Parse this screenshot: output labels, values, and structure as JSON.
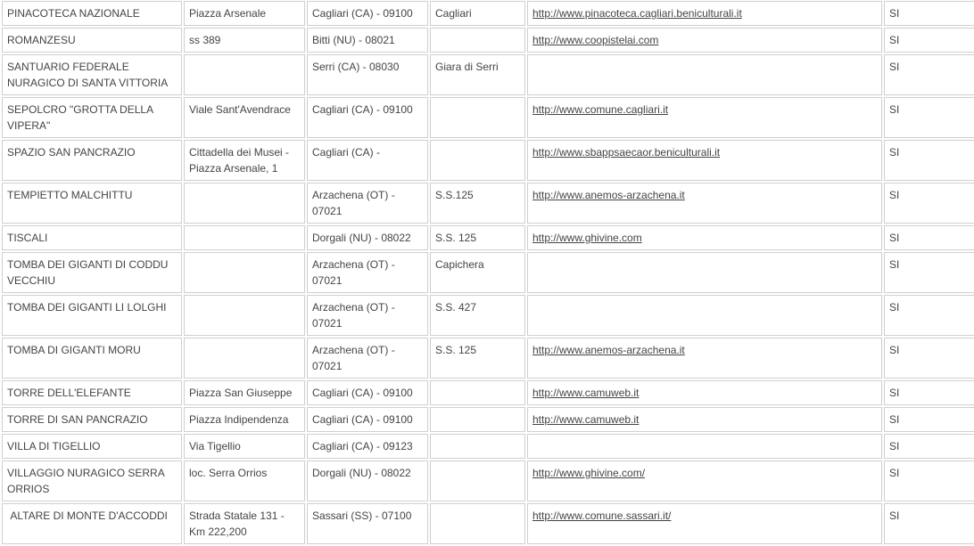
{
  "table": {
    "rows": [
      {
        "name": "PINACOTECA NAZIONALE",
        "address": "Piazza Arsenale",
        "city": "Cagliari (CA) - 09100",
        "locality": "Cagliari",
        "website": "http://www.pinacoteca.cagliari.beniculturali.it",
        "flag": "SI"
      },
      {
        "name": "ROMANZESU",
        "address": "ss 389",
        "city": "Bitti (NU) - 08021",
        "locality": "",
        "website": "http://www.coopistelai.com",
        "flag": "SI"
      },
      {
        "name": "SANTUARIO FEDERALE NURAGICO DI SANTA VITTORIA",
        "address": "",
        "city": "Serri (CA) - 08030",
        "locality": "Giara di Serri",
        "website": "",
        "flag": "SI"
      },
      {
        "name": "SEPOLCRO \"GROTTA DELLA VIPERA\"",
        "address": "Viale Sant'Avendrace",
        "city": "Cagliari (CA) - 09100",
        "locality": "",
        "website": "http://www.comune.cagliari.it",
        "flag": "SI"
      },
      {
        "name": "SPAZIO SAN PANCRAZIO",
        "address": "Cittadella dei Musei - Piazza Arsenale, 1",
        "city": "Cagliari (CA) -",
        "locality": "",
        "website": "http://www.sbappsaecaor.beniculturali.it",
        "flag": "SI"
      },
      {
        "name": "TEMPIETTO MALCHITTU",
        "address": "",
        "city": "Arzachena (OT) - 07021",
        "locality": "S.S.125",
        "website": "http://www.anemos-arzachena.it",
        "flag": "SI"
      },
      {
        "name": "TISCALI",
        "address": "",
        "city": "Dorgali (NU) - 08022",
        "locality": "S.S. 125",
        "website": "http://www.ghivine.com",
        "flag": "SI"
      },
      {
        "name": "TOMBA DEI GIGANTI DI CODDU VECCHIU",
        "address": "",
        "city": "Arzachena (OT) - 07021",
        "locality": "Capichera",
        "website": "",
        "flag": "SI"
      },
      {
        "name": "TOMBA DEI GIGANTI LI LOLGHI",
        "address": "",
        "city": "Arzachena (OT) - 07021",
        "locality": "S.S. 427",
        "website": "",
        "flag": "SI"
      },
      {
        "name": "TOMBA DI GIGANTI MORU",
        "address": "",
        "city": "Arzachena (OT) - 07021",
        "locality": "S.S. 125",
        "website": "http://www.anemos-arzachena.it",
        "flag": "SI"
      },
      {
        "name": "TORRE DELL'ELEFANTE",
        "address": "Piazza San Giuseppe",
        "city": "Cagliari (CA) - 09100",
        "locality": "",
        "website": "http://www.camuweb.it",
        "flag": "SI"
      },
      {
        "name": "TORRE DI SAN PANCRAZIO",
        "address": "Piazza Indipendenza",
        "city": "Cagliari (CA) - 09100",
        "locality": "",
        "website": "http://www.camuweb.it",
        "flag": "SI"
      },
      {
        "name": "VILLA DI TIGELLIO",
        "address": "Via Tigellio",
        "city": "Cagliari (CA) - 09123",
        "locality": "",
        "website": "",
        "flag": "SI"
      },
      {
        "name": "VILLAGGIO NURAGICO SERRA ORRIOS",
        "address": "loc. Serra Orrios",
        "city": "Dorgali (NU) - 08022",
        "locality": "",
        "website": "http://www.ghivine.com/",
        "flag": "SI"
      },
      {
        "name": " ALTARE DI MONTE D'ACCODDI",
        "address": "Strada Statale 131 - Km 222,200",
        "city": "Sassari (SS) - 07100",
        "locality": "",
        "website": "http://www.comune.sassari.it/",
        "flag": "SI"
      }
    ]
  }
}
